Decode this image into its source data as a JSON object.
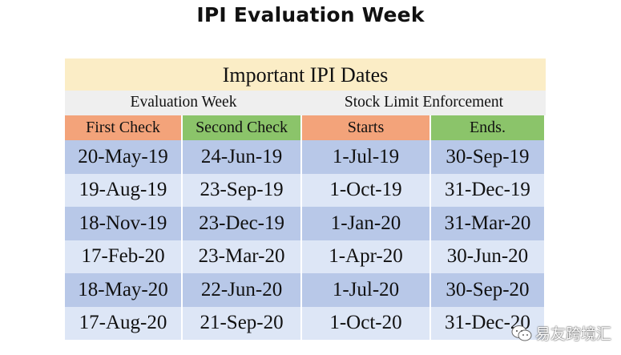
{
  "page": {
    "title": "IPI Evaluation Week"
  },
  "table": {
    "banner": "Important IPI Dates",
    "groups": [
      "Evaluation Week",
      "Stock Limit Enforcement"
    ],
    "headers": [
      "First Check",
      "Second Check",
      "Starts",
      "Ends."
    ],
    "rows": [
      [
        "20-May-19",
        "24-Jun-19",
        "1-Jul-19",
        "30-Sep-19"
      ],
      [
        "19-Aug-19",
        "23-Sep-19",
        "1-Oct-19",
        "31-Dec-19"
      ],
      [
        "18-Nov-19",
        "23-Dec-19",
        "1-Jan-20",
        "31-Mar-20"
      ],
      [
        "17-Feb-20",
        "23-Mar-20",
        "1-Apr-20",
        "30-Jun-20"
      ],
      [
        "18-May-20",
        "22-Jun-20",
        "1-Jul-20",
        "30-Sep-20"
      ],
      [
        "17-Aug-20",
        "21-Sep-20",
        "1-Oct-20",
        "31-Dec-20"
      ]
    ]
  },
  "watermark": {
    "text": "易友跨境汇",
    "icon": "wechat-icon"
  },
  "colors": {
    "banner_bg": "#fbedc6",
    "header_orange": "#f3a37a",
    "header_green": "#8bc46a",
    "row_dark": "#b8c8e8",
    "row_light": "#dde6f6"
  }
}
